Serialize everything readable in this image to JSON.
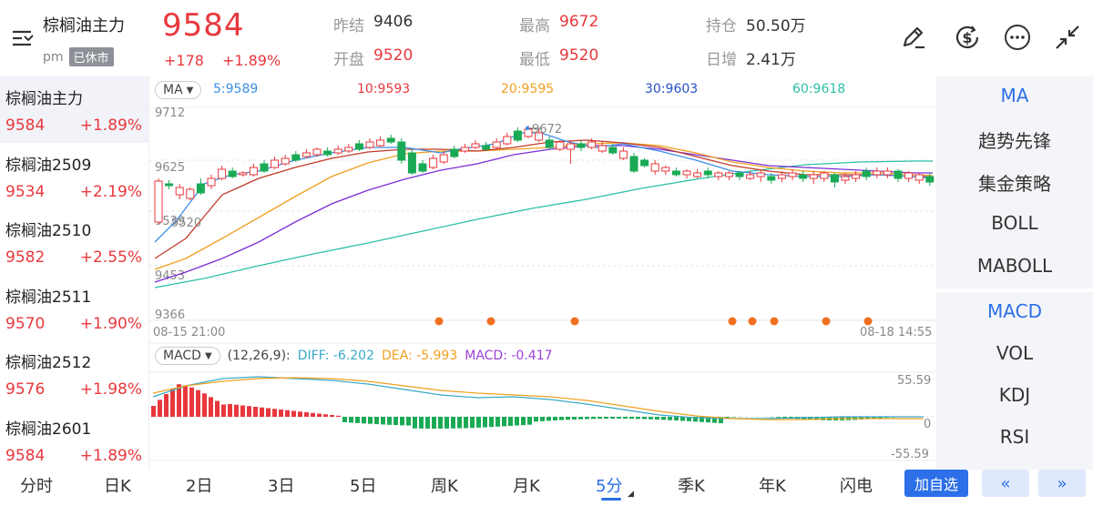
{
  "header": {
    "title": "棕榈油主力",
    "session_prefix": "pm",
    "session_badge": "已休市",
    "price": "9584",
    "change": "+178",
    "change_pct": "+1.89%",
    "stats": {
      "prev_settle_label": "昨结",
      "prev_settle": "9406",
      "open_label": "开盘",
      "open": "9520",
      "high_label": "最高",
      "high": "9672",
      "low_label": "最低",
      "low": "9520",
      "oi_label": "持仓",
      "oi": "50.50万",
      "oi_change_label": "日增",
      "oi_change": "2.41万"
    },
    "icons": [
      "draw-icon",
      "currency-icon",
      "more-icon",
      "shrink-icon"
    ]
  },
  "contracts": [
    {
      "name": "棕榈油主力",
      "price": "9584",
      "change": "+1.89%"
    },
    {
      "name": "棕榈油2509",
      "price": "9534",
      "change": "+2.19%"
    },
    {
      "name": "棕榈油2510",
      "price": "9582",
      "change": "+2.55%"
    },
    {
      "name": "棕榈油2511",
      "price": "9570",
      "change": "+1.90%"
    },
    {
      "name": "棕榈油2512",
      "price": "9576",
      "change": "+1.98%"
    },
    {
      "name": "棕榈油2601",
      "price": "9584",
      "change": "+1.89%"
    }
  ],
  "main_chart": {
    "indicator_label": "MA",
    "ma": [
      {
        "label": "5:9589",
        "color": "#3a8ee6"
      },
      {
        "label": "10:9593",
        "color": "#e8383d"
      },
      {
        "label": "20:9595",
        "color": "#f0a020"
      },
      {
        "label": "30:9603",
        "color": "#2750c7"
      },
      {
        "label": "60:9618",
        "color": "#2cc0a6"
      }
    ],
    "y_labels": [
      "9712",
      "9625",
      "9539",
      "9453",
      "9366"
    ],
    "high_marker": "9672",
    "low_marker": "9520",
    "time_start": "08-15 21:00",
    "time_end": "08-18 14:55"
  },
  "macd_chart": {
    "indicator_label": "MACD",
    "params": "(12,26,9):",
    "diff": "DIFF: -6.202",
    "dea": "DEA: -5.993",
    "macd": "MACD: -0.417",
    "y_labels": [
      "55.59",
      "0",
      "-55.59"
    ]
  },
  "indicators": {
    "main": [
      "MA",
      "趋势先锋",
      "集金策略",
      "BOLL",
      "MABOLL"
    ],
    "sub": [
      "MACD",
      "VOL",
      "KDJ",
      "RSI"
    ]
  },
  "periods": [
    "分时",
    "日K",
    "2日",
    "3日",
    "5日",
    "周K",
    "月K",
    "5分",
    "季K",
    "年K",
    "闪电"
  ],
  "active_period": "5分",
  "add_watchlist": "加自选",
  "nav_prev": "«",
  "nav_next": "»",
  "colors": {
    "up": "#e8383d",
    "down": "#1aaa55",
    "accent": "#2c6fe8"
  }
}
